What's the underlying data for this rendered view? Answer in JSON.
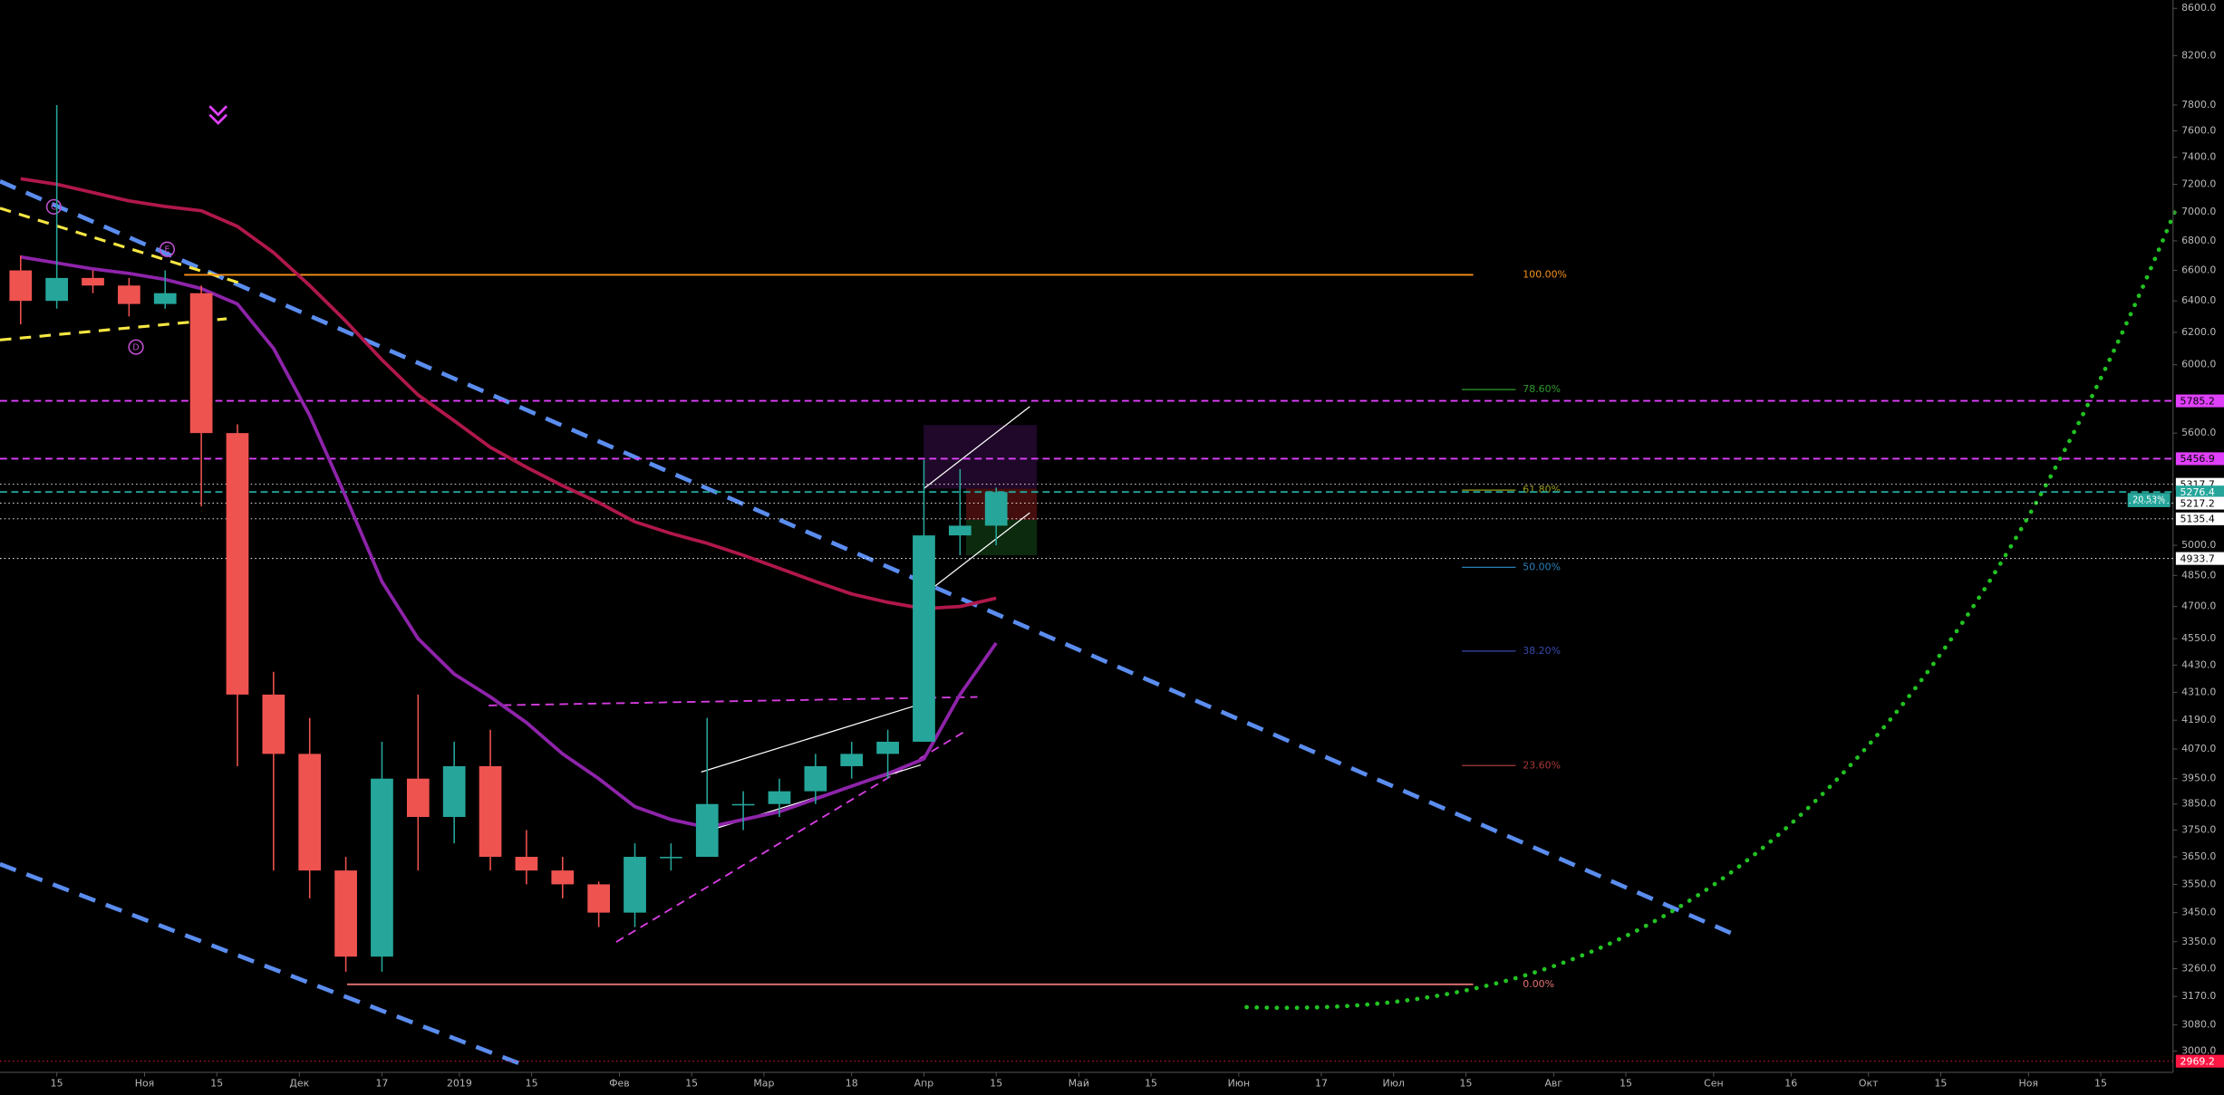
{
  "chart_data": {
    "type": "candlestick",
    "log_scale": true,
    "ylim": [
      2936,
      8673
    ],
    "xlim": [
      "2018-10-04",
      "2019-11-29"
    ],
    "yticks": [
      {
        "value": 8600,
        "label": "8600.0"
      },
      {
        "value": 8200,
        "label": "8200.0"
      },
      {
        "value": 7800,
        "label": "7800.0"
      },
      {
        "value": 7600,
        "label": "7600.0"
      },
      {
        "value": 7400,
        "label": "7400.0"
      },
      {
        "value": 7200,
        "label": "7200.0"
      },
      {
        "value": 7000,
        "label": "7000.0"
      },
      {
        "value": 6800,
        "label": "6800.0"
      },
      {
        "value": 6600,
        "label": "6600.0"
      },
      {
        "value": 6400,
        "label": "6400.0"
      },
      {
        "value": 6200,
        "label": "6200.0"
      },
      {
        "value": 6000,
        "label": "6000.0"
      },
      {
        "value": 5600,
        "label": "5600.0"
      },
      {
        "value": 5000,
        "label": "5000.0"
      },
      {
        "value": 4850,
        "label": "4850.0"
      },
      {
        "value": 4700,
        "label": "4700.0"
      },
      {
        "value": 4550,
        "label": "4550.0"
      },
      {
        "value": 4430,
        "label": "4430.0"
      },
      {
        "value": 4310,
        "label": "4310.0"
      },
      {
        "value": 4190,
        "label": "4190.0"
      },
      {
        "value": 4070,
        "label": "4070.0"
      },
      {
        "value": 3950,
        "label": "3950.0"
      },
      {
        "value": 3850,
        "label": "3850.0"
      },
      {
        "value": 3750,
        "label": "3750.0"
      },
      {
        "value": 3650,
        "label": "3650.0"
      },
      {
        "value": 3550,
        "label": "3550.0"
      },
      {
        "value": 3450,
        "label": "3450.0"
      },
      {
        "value": 3350,
        "label": "3350.0"
      },
      {
        "value": 3260,
        "label": "3260.0"
      },
      {
        "value": 3170,
        "label": "3170.0"
      },
      {
        "value": 3080,
        "label": "3080.0"
      },
      {
        "value": 3000,
        "label": "3000.0"
      }
    ],
    "xticks": [
      {
        "value": "2018-10-15",
        "label": "15"
      },
      {
        "value": "2018-11-01",
        "label": "Ноя"
      },
      {
        "value": "2018-11-15",
        "label": "15"
      },
      {
        "value": "2018-12-01",
        "label": "Дек"
      },
      {
        "value": "2018-12-17",
        "label": "17"
      },
      {
        "value": "2019-01-01",
        "label": "2019"
      },
      {
        "value": "2019-01-15",
        "label": "15"
      },
      {
        "value": "2019-02-01",
        "label": "Фев"
      },
      {
        "value": "2019-02-15",
        "label": "15"
      },
      {
        "value": "2019-03-01",
        "label": "Мар"
      },
      {
        "value": "2019-03-18",
        "label": "18"
      },
      {
        "value": "2019-04-01",
        "label": "Апр"
      },
      {
        "value": "2019-04-15",
        "label": "15"
      },
      {
        "value": "2019-05-01",
        "label": "Май"
      },
      {
        "value": "2019-05-15",
        "label": "15"
      },
      {
        "value": "2019-06-01",
        "label": "Июн"
      },
      {
        "value": "2019-06-17",
        "label": "17"
      },
      {
        "value": "2019-07-01",
        "label": "Июл"
      },
      {
        "value": "2019-07-15",
        "label": "15"
      },
      {
        "value": "2019-08-01",
        "label": "Авг"
      },
      {
        "value": "2019-08-15",
        "label": "15"
      },
      {
        "value": "2019-09-01",
        "label": "Сен"
      },
      {
        "value": "2019-09-16",
        "label": "16"
      },
      {
        "value": "2019-10-01",
        "label": "Окт"
      },
      {
        "value": "2019-10-15",
        "label": "15"
      },
      {
        "value": "2019-11-01",
        "label": "Ноя"
      },
      {
        "value": "2019-11-15",
        "label": "15"
      }
    ],
    "x": [
      "2018-10-08",
      "2018-10-15",
      "2018-10-22",
      "2018-10-29",
      "2018-11-05",
      "2018-11-12",
      "2018-11-19",
      "2018-11-26",
      "2018-12-03",
      "2018-12-10",
      "2018-12-17",
      "2018-12-24",
      "2018-12-31",
      "2019-01-07",
      "2019-01-14",
      "2019-01-21",
      "2019-01-28",
      "2019-02-04",
      "2019-02-11",
      "2019-02-18",
      "2019-02-25",
      "2019-03-04",
      "2019-03-11",
      "2019-03-18",
      "2019-03-25",
      "2019-04-01",
      "2019-04-08",
      "2019-04-15"
    ],
    "open": [
      6600,
      6400,
      6550,
      6500,
      6380,
      6450,
      5600,
      4300,
      4050,
      3600,
      3300,
      3950,
      3800,
      4000,
      3650,
      3600,
      3550,
      3450,
      3650,
      3650,
      3850,
      3850,
      3900,
      4000,
      4050,
      4100,
      5050,
      5100
    ],
    "high": [
      6700,
      7800,
      6600,
      6550,
      6600,
      6500,
      5650,
      4400,
      4200,
      3650,
      4100,
      4300,
      4100,
      4150,
      3750,
      3650,
      3560,
      3700,
      3700,
      4200,
      3900,
      3950,
      4050,
      4100,
      4150,
      5450,
      5400,
      5300
    ],
    "low": [
      6250,
      6350,
      6450,
      6300,
      6350,
      5200,
      4000,
      3600,
      3500,
      3250,
      3250,
      3600,
      3700,
      3600,
      3550,
      3500,
      3400,
      3400,
      3600,
      3650,
      3750,
      3800,
      3850,
      3950,
      3950,
      4100,
      4950,
      5000
    ],
    "close": [
      6400,
      6550,
      6500,
      6380,
      6450,
      5600,
      4300,
      4050,
      3600,
      3300,
      3950,
      3800,
      4000,
      3650,
      3600,
      3550,
      3450,
      3650,
      3650,
      3850,
      3850,
      3900,
      4000,
      4050,
      4100,
      5050,
      5100,
      5276.4
    ],
    "up_color": "#26a69a",
    "down_color": "#ef5350",
    "series": [
      {
        "color": "#b0184a",
        "values": [
          7240,
          7200,
          7140,
          7080,
          7040,
          7010,
          6900,
          6720,
          6500,
          6270,
          6030,
          5820,
          5670,
          5520,
          5410,
          5310,
          5220,
          5120,
          5060,
          5010,
          4950,
          4885,
          4820,
          4760,
          4720,
          4690,
          4700,
          4740
        ]
      },
      {
        "color": "#8e24aa",
        "values": [
          6690,
          6650,
          6610,
          6580,
          6540,
          6480,
          6380,
          6100,
          5700,
          5250,
          4820,
          4550,
          4390,
          4290,
          4180,
          4050,
          3950,
          3840,
          3790,
          3760,
          3790,
          3820,
          3870,
          3920,
          3970,
          4030,
          4300,
          4530
        ]
      }
    ],
    "price_lines": [
      {
        "value": 5785.2,
        "color": "#e040fb",
        "text_color": "#000000",
        "style": "dashed"
      },
      {
        "value": 5456.9,
        "color": "#e040fb",
        "text_color": "#000000",
        "style": "dashed"
      },
      {
        "value": 5317.7,
        "color": "#ffffff",
        "text_color": "#000000",
        "style": "dotted"
      },
      {
        "value": 5276.4,
        "color": "#26a69a",
        "text_color": "#ffffff",
        "style": "dashed"
      },
      {
        "value": 5217.2,
        "color": "#ffffff",
        "text_color": "#000000",
        "style": "dotted"
      },
      {
        "value": 5135.4,
        "color": "#ffffff",
        "text_color": "#000000",
        "style": "dotted"
      },
      {
        "value": 4933.7,
        "color": "#ffffff",
        "text_color": "#000000",
        "style": "dotted"
      },
      {
        "value": 2969.2,
        "color": "#ff1744",
        "text_color": "#ffffff",
        "style": "dotted"
      }
    ],
    "change_label": "20.53%",
    "fib": {
      "low": 3209,
      "high": 6571,
      "levels": [
        {
          "value": 100,
          "label": "100.00%",
          "color": "#f7931a"
        },
        {
          "value": 78.6,
          "label": "78.60%",
          "color": "#2e9a2e"
        },
        {
          "value": 61.8,
          "label": "61.80%",
          "color": "#9a9a1a"
        },
        {
          "value": 50,
          "label": "50.00%",
          "color": "#2a7fb8"
        },
        {
          "value": 38.2,
          "label": "38.20%",
          "color": "#3848a8"
        },
        {
          "value": 23.6,
          "label": "23.60%",
          "color": "#a83838"
        },
        {
          "value": 0,
          "label": "0.00%",
          "color": "#e57373"
        }
      ]
    },
    "annotations": [
      "C",
      "E",
      "D"
    ]
  }
}
